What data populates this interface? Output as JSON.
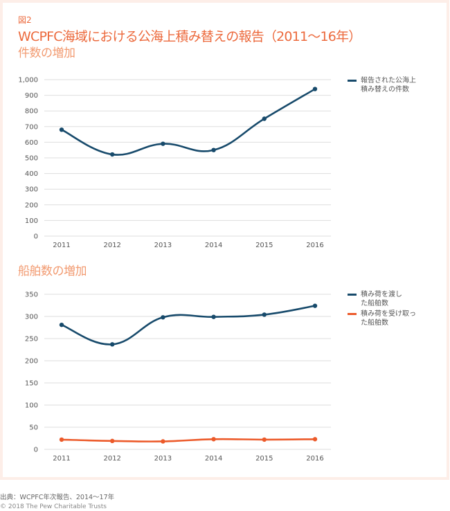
{
  "figure_label": "図2",
  "title": "WCPFC海域における公海上積み替えの報告（2011〜16年）",
  "colors": {
    "accent": "#ec6a3d",
    "subtitle": "#f29a70",
    "series_blue": "#174a6b",
    "series_orange": "#ec5a2a",
    "grid": "#dedede",
    "border": "#fdeee8"
  },
  "chart_data": [
    {
      "type": "line",
      "title": "件数の増加",
      "categories": [
        "2011",
        "2012",
        "2013",
        "2014",
        "2015",
        "2016"
      ],
      "series": [
        {
          "name": "報告された公海上積み替えの件数",
          "legend_lines": [
            "報告された公海上",
            "積み替えの件数"
          ],
          "color": "#174a6b",
          "values": [
            680,
            522,
            590,
            550,
            750,
            940
          ]
        }
      ],
      "yticks": [
        0,
        100,
        200,
        300,
        400,
        500,
        600,
        700,
        800,
        900,
        1000
      ],
      "ytick_labels": [
        "0",
        "100",
        "200",
        "300",
        "400",
        "500",
        "600",
        "700",
        "800",
        "900",
        "1,000"
      ],
      "ylim": [
        0,
        1000
      ],
      "xlabel": "",
      "ylabel": "",
      "grid": true,
      "legend": "right"
    },
    {
      "type": "line",
      "title": "船舶数の増加",
      "categories": [
        "2011",
        "2012",
        "2013",
        "2014",
        "2015",
        "2016"
      ],
      "series": [
        {
          "name": "積み荷を渡した船舶数",
          "legend_lines": [
            "積み荷を渡し",
            "た船舶数"
          ],
          "color": "#174a6b",
          "values": [
            281,
            237,
            298,
            299,
            304,
            324
          ]
        },
        {
          "name": "積み荷を受け取った船舶数",
          "legend_lines": [
            "積み荷を受け取っ",
            "た船舶数"
          ],
          "color": "#ec5a2a",
          "values": [
            22,
            19,
            18,
            23,
            22,
            23
          ]
        }
      ],
      "yticks": [
        0,
        50,
        100,
        150,
        200,
        250,
        300,
        350
      ],
      "ytick_labels": [
        "0",
        "50",
        "100",
        "150",
        "200",
        "250",
        "300",
        "350"
      ],
      "ylim": [
        0,
        350
      ],
      "xlabel": "",
      "ylabel": "",
      "grid": true,
      "legend": "right"
    }
  ],
  "footer": {
    "source": "出典：WCPFC年次報告、2014〜17年",
    "copyright": "© 2018 The Pew Charitable Trusts"
  }
}
